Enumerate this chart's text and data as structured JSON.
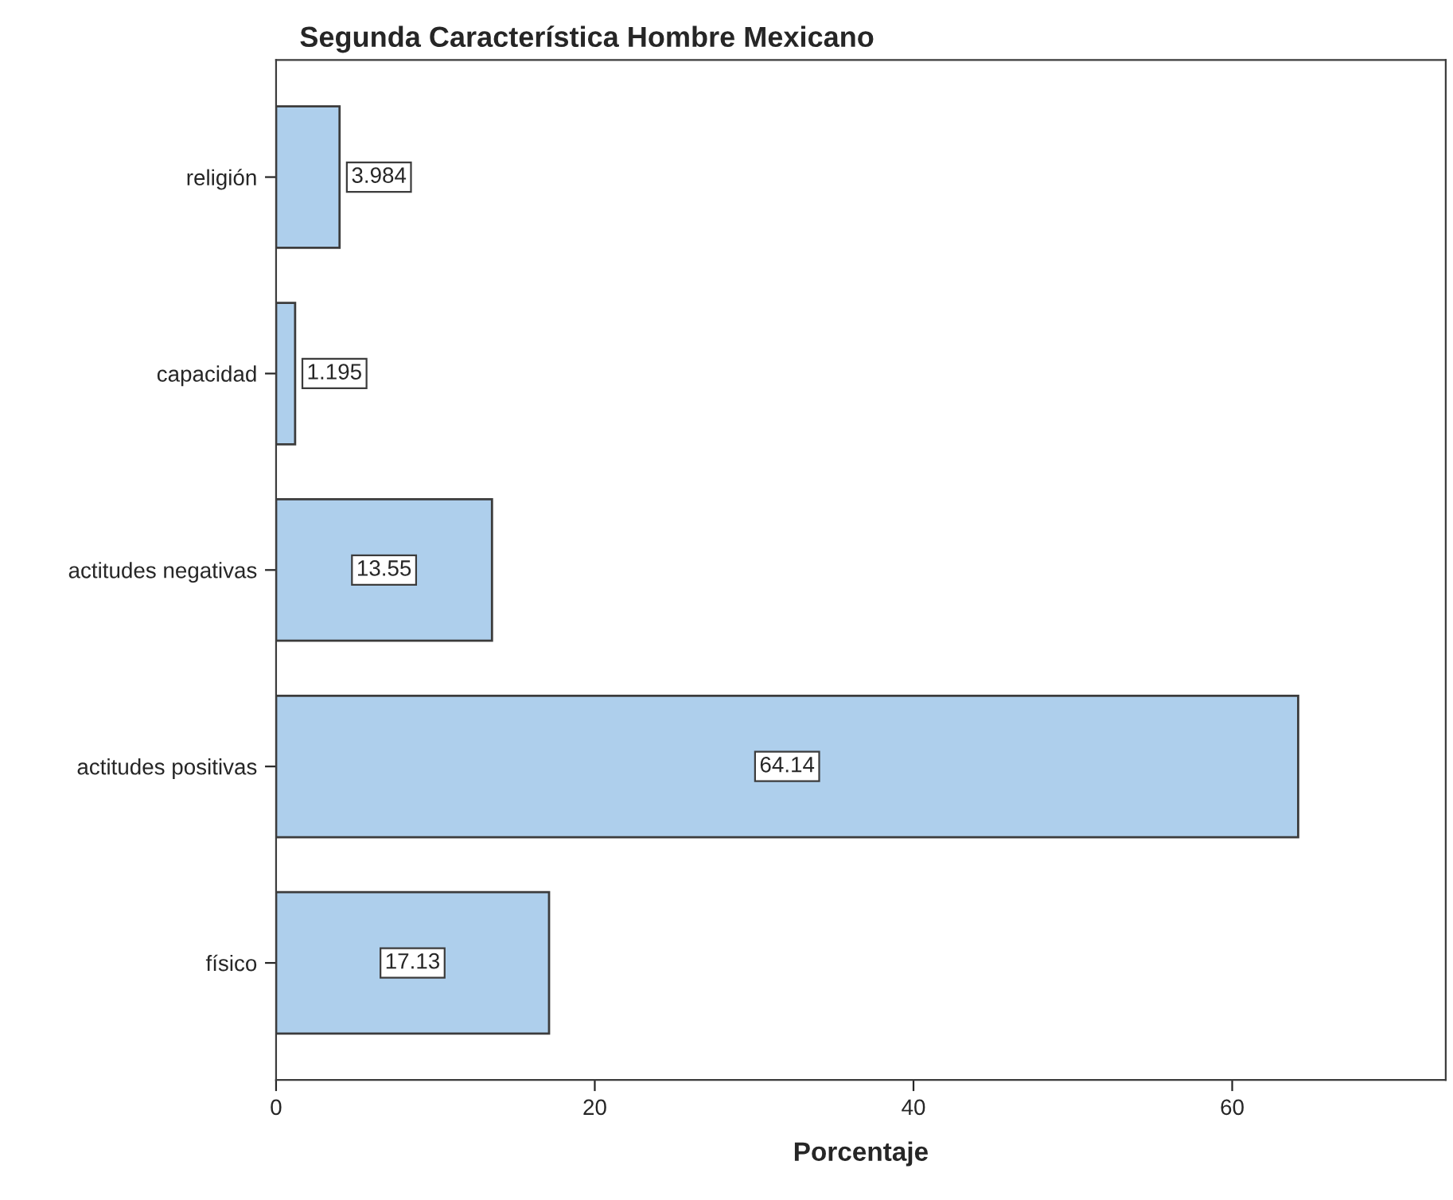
{
  "chart_data": {
    "type": "bar",
    "orientation": "horizontal",
    "title": "Segunda Característica Hombre Mexicano",
    "xlabel": "Porcentaje",
    "categories": [
      "religión",
      "capacidad",
      "actitudes negativas",
      "actitudes positivas",
      "físico"
    ],
    "values": [
      3.984,
      1.195,
      13.55,
      64.14,
      17.13
    ],
    "color": "#aecfec",
    "xlim": [
      0,
      73.4
    ],
    "xticks": [
      0,
      20,
      40,
      60
    ],
    "data_labels": true,
    "grid": false,
    "legend": false
  }
}
